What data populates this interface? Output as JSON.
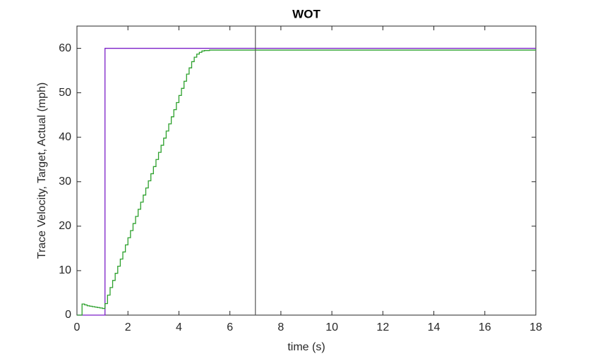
{
  "chart_data": {
    "type": "step-line",
    "title": "WOT",
    "x_label": "time (s)",
    "y_label": "Trace Velocity, Target, Actual (mph)",
    "xlim": [
      0,
      18
    ],
    "xticks": [
      0,
      2,
      4,
      6,
      8,
      10,
      12,
      14,
      16,
      18
    ],
    "ylim": [
      0,
      65
    ],
    "yticks": [
      0,
      10,
      20,
      30,
      40,
      50,
      60
    ],
    "vlines": [
      {
        "x": 7,
        "color": "#555555"
      }
    ],
    "series": [
      {
        "color": "#7b1fc8",
        "x": [
          0,
          1.1,
          18
        ],
        "values": [
          0,
          60,
          60
        ]
      },
      {
        "color": "#2ca02c",
        "x": [
          0,
          0.1,
          0.2,
          0.3,
          0.4,
          0.5,
          0.6,
          0.7,
          0.8,
          0.9,
          1.0,
          1.1,
          1.2,
          1.3,
          1.4,
          1.5,
          1.6,
          1.7,
          1.8,
          1.9,
          2.0,
          2.1,
          2.2,
          2.3,
          2.4,
          2.5,
          2.6,
          2.7,
          2.8,
          2.9,
          3.0,
          3.1,
          3.2,
          3.3,
          3.4,
          3.5,
          3.6,
          3.7,
          3.8,
          3.9,
          4.0,
          4.1,
          4.2,
          4.3,
          4.4,
          4.5,
          4.6,
          4.7,
          4.8,
          4.9,
          5.0,
          5.2,
          18
        ],
        "values": [
          0,
          0,
          2.5,
          2.3,
          2.1,
          2.0,
          1.9,
          1.8,
          1.7,
          1.6,
          1.5,
          2.6,
          4.5,
          6.2,
          7.8,
          9.4,
          11.0,
          12.6,
          14.2,
          15.8,
          17.4,
          19.0,
          20.6,
          22.2,
          23.8,
          25.4,
          27.0,
          28.6,
          30.2,
          31.8,
          33.4,
          35.0,
          36.6,
          38.2,
          39.8,
          41.4,
          43.0,
          44.6,
          46.2,
          47.8,
          49.4,
          51.0,
          52.6,
          54.2,
          55.6,
          57.0,
          58.0,
          58.7,
          59.1,
          59.4,
          59.5,
          59.6,
          59.6
        ]
      }
    ]
  }
}
